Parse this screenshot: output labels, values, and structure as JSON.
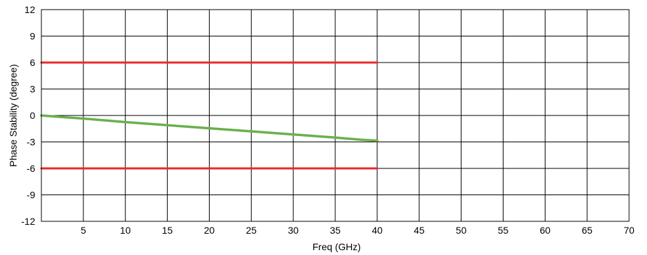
{
  "chart_data": {
    "type": "line",
    "xlabel": "Freq (GHz)",
    "ylabel": "Phase Stability (degree)",
    "xlim": [
      0,
      70
    ],
    "ylim": [
      -12,
      12
    ],
    "x_ticks": [
      5,
      10,
      15,
      20,
      25,
      30,
      35,
      40,
      45,
      50,
      55,
      60,
      65,
      70
    ],
    "y_ticks": [
      12,
      9,
      6,
      3,
      0,
      -3,
      -6,
      -9,
      -12
    ],
    "grid": true,
    "legend": "none",
    "series": [
      {
        "color": "#6ab04c",
        "x": [
          0,
          2,
          5,
          10,
          15,
          20,
          25,
          30,
          35,
          38,
          40
        ],
        "y": [
          0,
          -0.15,
          -0.35,
          -0.75,
          -1.1,
          -1.45,
          -1.8,
          -2.15,
          -2.5,
          -2.75,
          -2.85
        ]
      },
      {
        "color": "#e8292b",
        "x": [
          0,
          40
        ],
        "y": [
          6,
          6
        ]
      },
      {
        "color": "#e8292b",
        "x": [
          0,
          40
        ],
        "y": [
          -6,
          -6
        ]
      }
    ]
  }
}
